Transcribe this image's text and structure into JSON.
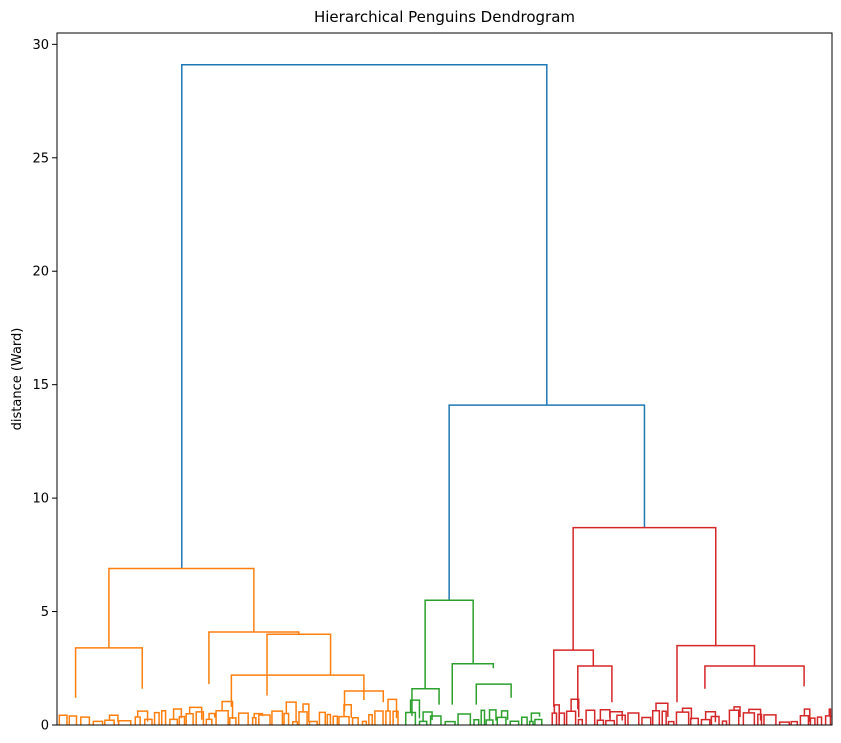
{
  "chart_data": {
    "type": "dendrogram",
    "title": "Hierarchical Penguins Dendrogram",
    "xlabel": "",
    "ylabel": "distance (Ward)",
    "ylim": [
      0,
      30.5
    ],
    "yticks": [
      0,
      5,
      10,
      15,
      20,
      25,
      30
    ],
    "grid": false,
    "colors": {
      "above_threshold": "#1f77b4",
      "cluster_1": "#ff7f0e",
      "cluster_2": "#2ca02c",
      "cluster_3": "#d62728"
    },
    "merges": [
      {
        "level": "top",
        "left_x": 0.161,
        "right_x": 0.632,
        "left_height": 6.9,
        "right_height": 14.1,
        "height": 29.1,
        "color": "above_threshold"
      },
      {
        "level": "sub",
        "left_x": 0.506,
        "right_x": 0.758,
        "left_height": 5.5,
        "right_height": 8.7,
        "height": 14.1,
        "color": "above_threshold"
      },
      {
        "level": "cluster",
        "left_x": 0.067,
        "right_x": 0.254,
        "left_height": 3.4,
        "right_height": 4.1,
        "height": 6.9,
        "color": "cluster_1"
      },
      {
        "level": "cluster",
        "left_x": 0.475,
        "right_x": 0.537,
        "left_height": 1.6,
        "right_height": 2.7,
        "height": 5.5,
        "color": "cluster_2"
      },
      {
        "level": "cluster",
        "left_x": 0.666,
        "right_x": 0.85,
        "left_height": 3.3,
        "right_height": 3.5,
        "height": 8.7,
        "color": "cluster_3"
      },
      {
        "level": "group",
        "left_x": 0.024,
        "right_x": 0.11,
        "left_height": 1.2,
        "right_height": 1.6,
        "height": 3.4,
        "color": "cluster_1"
      },
      {
        "level": "group",
        "left_x": 0.196,
        "right_x": 0.312,
        "left_height": 1.8,
        "right_height": 4.0,
        "height": 4.1,
        "color": "cluster_1"
      },
      {
        "level": "group",
        "left_x": 0.271,
        "right_x": 0.353,
        "left_height": 1.3,
        "right_height": 2.2,
        "height": 4.0,
        "color": "cluster_1"
      },
      {
        "level": "group",
        "left_x": 0.51,
        "right_x": 0.563,
        "left_height": 0.9,
        "right_height": 2.5,
        "height": 2.7,
        "color": "cluster_2"
      },
      {
        "level": "group",
        "left_x": 0.641,
        "right_x": 0.692,
        "left_height": 0.8,
        "right_height": 2.6,
        "height": 3.3,
        "color": "cluster_3"
      },
      {
        "level": "group",
        "left_x": 0.8,
        "right_x": 0.9,
        "left_height": 1.0,
        "right_height": 2.6,
        "height": 3.5,
        "color": "cluster_3"
      },
      {
        "level": "group",
        "left_x": 0.836,
        "right_x": 0.964,
        "left_height": 1.6,
        "right_height": 1.7,
        "height": 2.6,
        "color": "cluster_3"
      },
      {
        "level": "group",
        "left_x": 0.225,
        "right_x": 0.396,
        "left_height": 0.8,
        "right_height": 1.1,
        "height": 2.2,
        "color": "cluster_1"
      },
      {
        "level": "group",
        "left_x": 0.541,
        "right_x": 0.586,
        "left_height": 0.9,
        "right_height": 1.2,
        "height": 1.8,
        "color": "cluster_2"
      },
      {
        "level": "group",
        "left_x": 0.458,
        "right_x": 0.493,
        "left_height": 0.4,
        "right_height": 0.9,
        "height": 1.6,
        "color": "cluster_2"
      },
      {
        "level": "group",
        "left_x": 0.371,
        "right_x": 0.421,
        "left_height": 0.6,
        "right_height": 1.0,
        "height": 1.5,
        "color": "cluster_1"
      },
      {
        "level": "group",
        "left_x": 0.672,
        "right_x": 0.716,
        "left_height": 0.7,
        "right_height": 1.0,
        "height": 2.6,
        "color": "cluster_3"
      }
    ]
  }
}
